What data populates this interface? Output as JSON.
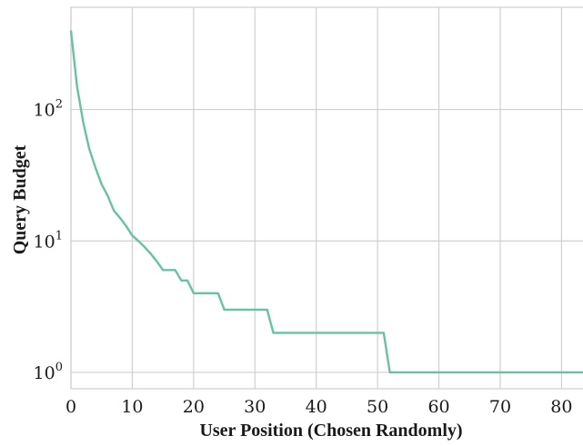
{
  "chart_data": {
    "type": "line",
    "title": "",
    "xlabel": "User Position (Chosen Randomly)",
    "ylabel": "Query Budget",
    "xlim": [
      0,
      83.5
    ],
    "ylim": [
      0.75,
      600
    ],
    "yscale": "log",
    "grid": true,
    "x_ticks": [
      0,
      10,
      20,
      30,
      40,
      50,
      60,
      70,
      80
    ],
    "y_ticks": [
      {
        "value": 1,
        "base": "10",
        "exp": "0"
      },
      {
        "value": 10,
        "base": "10",
        "exp": "1"
      },
      {
        "value": 100,
        "base": "10",
        "exp": "2"
      }
    ],
    "series": [
      {
        "color": "#66c2a5",
        "x": [
          0,
          1,
          2,
          3,
          4,
          5,
          6,
          7,
          8,
          9,
          10,
          11,
          12,
          13,
          14,
          15,
          16,
          17,
          18,
          19,
          20,
          21,
          22,
          23,
          24,
          25,
          26,
          31,
          32,
          33,
          34,
          50,
          51,
          52,
          53,
          83.5
        ],
        "y": [
          400,
          150,
          80,
          50,
          36,
          27,
          22,
          17,
          15,
          13,
          11,
          10,
          9,
          8,
          7,
          6,
          6,
          6,
          5,
          5,
          4,
          4,
          4,
          4,
          4,
          3,
          3,
          3,
          3,
          2,
          2,
          2,
          2,
          1,
          1,
          1
        ]
      }
    ]
  }
}
